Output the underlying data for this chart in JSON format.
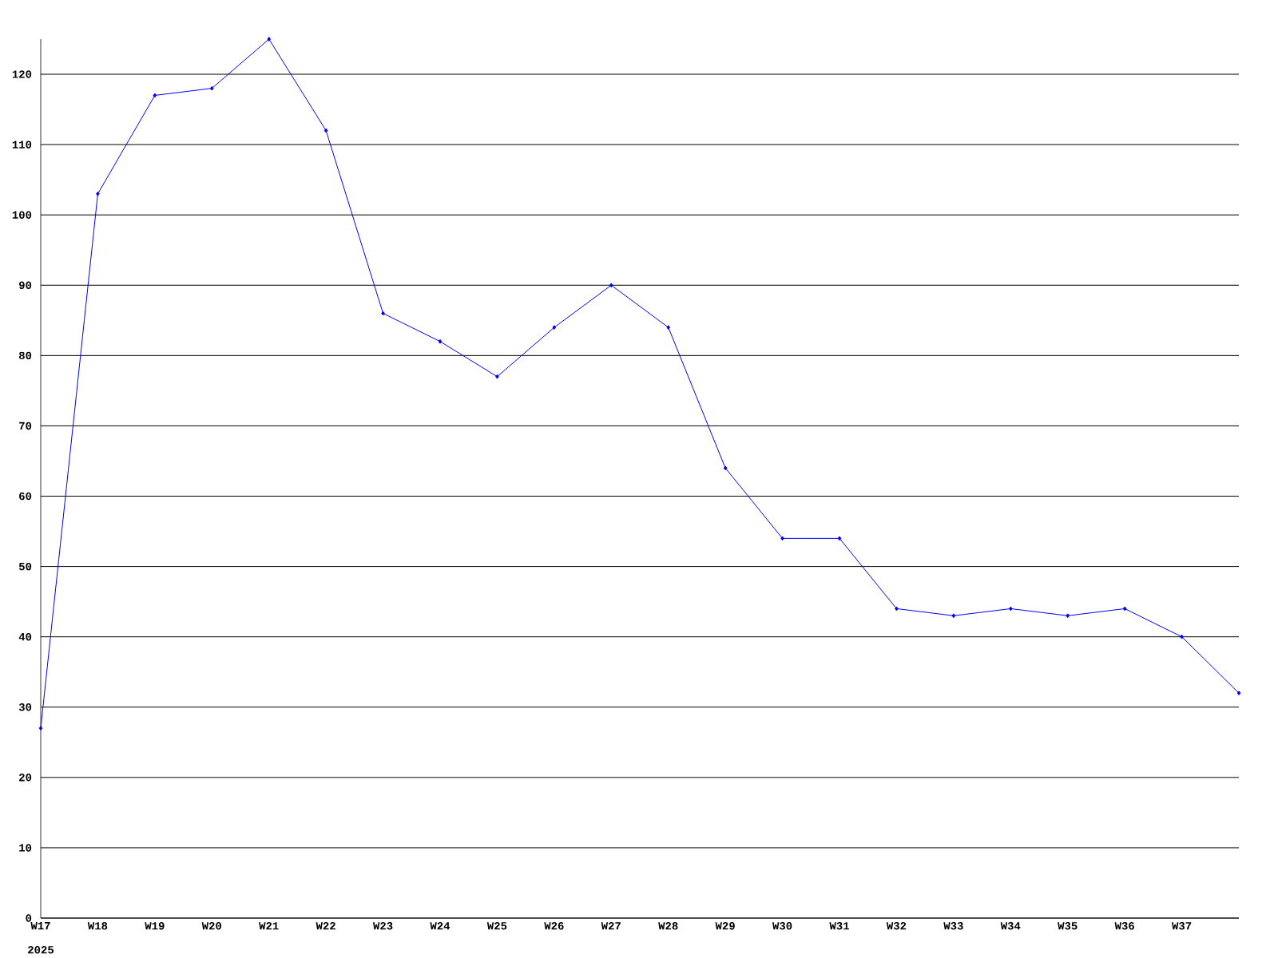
{
  "chart_data": {
    "type": "line",
    "color": "#0000ff",
    "marker": "diamond",
    "grid": "y",
    "categories": [
      "W17",
      "W18",
      "W19",
      "W20",
      "W21",
      "W22",
      "W23",
      "W24",
      "W25",
      "W26",
      "W27",
      "W28",
      "W29",
      "W30",
      "W31",
      "W32",
      "W33",
      "W34",
      "W35",
      "W36",
      "W37",
      null
    ],
    "values": [
      27,
      103,
      117,
      118,
      125,
      112,
      86,
      82,
      77,
      84,
      90,
      84,
      64,
      54,
      54,
      44,
      43,
      44,
      43,
      44,
      40,
      32
    ],
    "ylim": [
      0,
      125
    ],
    "yticks": [
      0,
      10,
      20,
      30,
      40,
      50,
      60,
      70,
      80,
      90,
      100,
      110,
      120
    ],
    "annotations": [
      "2025"
    ]
  }
}
